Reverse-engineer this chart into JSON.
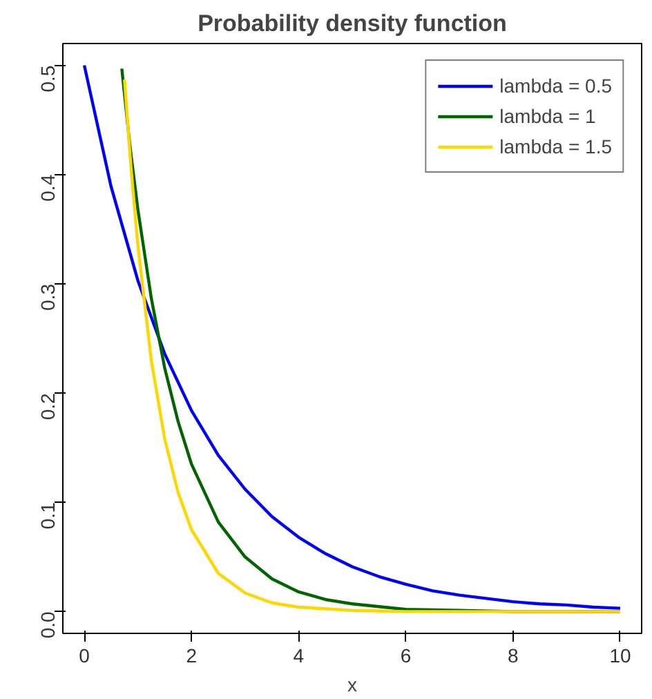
{
  "chart_data": {
    "type": "line",
    "title": "Probability density function",
    "xlabel": "x",
    "xlim": [
      -0.4,
      10.4
    ],
    "ylim": [
      -0.02,
      0.52
    ],
    "xticks": [
      0,
      2,
      4,
      6,
      8,
      10
    ],
    "yticks": [
      {
        "value": 0,
        "label": "0.0"
      },
      0.1,
      0.2,
      0.3,
      0.4,
      0.5
    ],
    "grid": false,
    "legend": "top right",
    "marker": "none",
    "line_style": "solid",
    "series": [
      {
        "name": "lambda = 0.5",
        "color": "#0000ff",
        "x": [
          0,
          0.5,
          1,
          1.5,
          2,
          2.5,
          3,
          3.5,
          4,
          4.5,
          5,
          5.5,
          6,
          6.5,
          7,
          7.5,
          8,
          8.5,
          9,
          9.5,
          10
        ],
        "values": [
          0.5,
          0.389,
          0.303,
          0.236,
          0.184,
          0.143,
          0.112,
          0.087,
          0.068,
          0.053,
          0.041,
          0.032,
          0.025,
          0.019,
          0.015,
          0.012,
          0.009,
          0.007,
          0.006,
          0.004,
          0.003
        ]
      },
      {
        "name": "lambda = 1",
        "color": "#006400",
        "x": [
          0.7,
          0.85,
          1,
          1.25,
          1.5,
          1.75,
          2,
          2.5,
          3,
          3.5,
          4,
          4.5,
          5,
          6,
          7,
          8,
          9,
          10
        ],
        "values": [
          0.497,
          0.427,
          0.368,
          0.287,
          0.223,
          0.174,
          0.135,
          0.082,
          0.05,
          0.03,
          0.018,
          0.011,
          0.007,
          0.002,
          0.001,
          0,
          0,
          0
        ]
      },
      {
        "name": "lambda = 1.5",
        "color": "#ffd700",
        "x": [
          0.75,
          0.875,
          1,
          1.25,
          1.5,
          1.75,
          2,
          2.5,
          3,
          3.5,
          4,
          5,
          6,
          7,
          8,
          9,
          10
        ],
        "values": [
          0.487,
          0.404,
          0.335,
          0.23,
          0.158,
          0.109,
          0.075,
          0.035,
          0.017,
          0.008,
          0.004,
          0.001,
          0,
          0,
          0,
          0,
          0
        ]
      }
    ]
  }
}
